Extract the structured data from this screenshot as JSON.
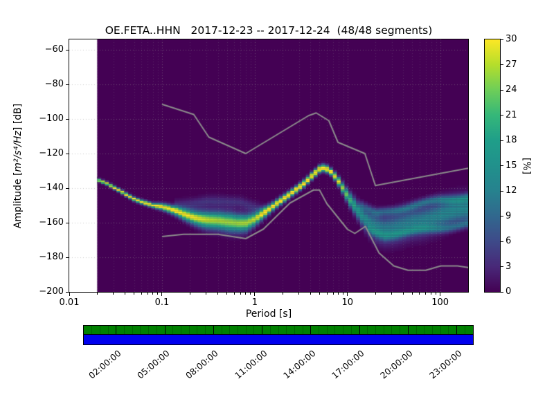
{
  "title": "OE.FETA..HHN   2017-12-23 -- 2017-12-24  (48/48 segments)",
  "y_axis": {
    "label_pre": "Amplitude [",
    "label_math": "m²/s⁴/Hz",
    "label_post": "] [dB]",
    "ticks": [
      {
        "v": -60,
        "label": "−60"
      },
      {
        "v": -80,
        "label": "−80"
      },
      {
        "v": -100,
        "label": "−100"
      },
      {
        "v": -120,
        "label": "−120"
      },
      {
        "v": -140,
        "label": "−140"
      },
      {
        "v": -160,
        "label": "−160"
      },
      {
        "v": -180,
        "label": "−180"
      },
      {
        "v": -200,
        "label": "−200"
      }
    ]
  },
  "x_axis": {
    "label": "Period [s]",
    "ticks": [
      {
        "v": 0.01,
        "label": "0.01"
      },
      {
        "v": 0.1,
        "label": "0.1"
      },
      {
        "v": 1,
        "label": "1"
      },
      {
        "v": 10,
        "label": "10"
      },
      {
        "v": 100,
        "label": "100"
      }
    ]
  },
  "colorbar": {
    "label": "[%]",
    "min": 0,
    "max": 30,
    "ticks": [
      {
        "v": 0,
        "label": "0"
      },
      {
        "v": 3,
        "label": "3"
      },
      {
        "v": 6,
        "label": "6"
      },
      {
        "v": 9,
        "label": "9"
      },
      {
        "v": 12,
        "label": "12"
      },
      {
        "v": 15,
        "label": "15"
      },
      {
        "v": 18,
        "label": "18"
      },
      {
        "v": 21,
        "label": "21"
      },
      {
        "v": 24,
        "label": "24"
      },
      {
        "v": 27,
        "label": "27"
      },
      {
        "v": 30,
        "label": "30"
      }
    ]
  },
  "timebar": {
    "green_color": "#008000",
    "blue_color": "#0000ee",
    "start_hour": 0,
    "end_hour": 24,
    "segments": 48,
    "labels": [
      {
        "hour": 2,
        "text": "02:00:00"
      },
      {
        "hour": 5,
        "text": "05:00:00"
      },
      {
        "hour": 8,
        "text": "08:00:00"
      },
      {
        "hour": 11,
        "text": "11:00:00"
      },
      {
        "hour": 14,
        "text": "14:00:00"
      },
      {
        "hour": 17,
        "text": "17:00:00"
      },
      {
        "hour": 20,
        "text": "20:00:00"
      },
      {
        "hour": 23,
        "text": "23:00:00"
      }
    ]
  },
  "chart_data": {
    "type": "heatmap",
    "description": "PPSD probabilistic power spectral density histogram; probability [%] of PSD amplitude per period bin",
    "x_scale": "log",
    "x_range": [
      0.01,
      200
    ],
    "y_range": [
      -200,
      -54
    ],
    "data_start_period": 0.02,
    "percent_range": [
      0,
      30
    ],
    "background_percent_color": "#440154",
    "colormap": {
      "name": "viridis",
      "stops": [
        [
          0.0,
          "#440154"
        ],
        [
          0.1,
          "#482878"
        ],
        [
          0.2,
          "#3e4a89"
        ],
        [
          0.3,
          "#31688e"
        ],
        [
          0.4,
          "#26828e"
        ],
        [
          0.5,
          "#21918c"
        ],
        [
          0.6,
          "#1f9e89"
        ],
        [
          0.7,
          "#35b779"
        ],
        [
          0.8,
          "#6ece58"
        ],
        [
          0.9,
          "#b5de2b"
        ],
        [
          1.0,
          "#fde725"
        ]
      ]
    },
    "components": [
      {
        "name": "mode-line",
        "range": [
          0.02,
          200
        ],
        "center": [
          [
            0.02,
            -135
          ],
          [
            0.025,
            -137.5
          ],
          [
            0.03,
            -140
          ],
          [
            0.04,
            -143.5
          ],
          [
            0.05,
            -146
          ],
          [
            0.065,
            -148
          ],
          [
            0.08,
            -149.8
          ],
          [
            0.1,
            -151
          ],
          [
            0.13,
            -153
          ],
          [
            0.17,
            -155
          ],
          [
            0.22,
            -156.5
          ],
          [
            0.3,
            -158
          ],
          [
            0.4,
            -159
          ],
          [
            0.5,
            -160
          ],
          [
            0.65,
            -160.5
          ],
          [
            0.8,
            -160
          ],
          [
            1.0,
            -157.5
          ],
          [
            1.3,
            -153.5
          ],
          [
            1.7,
            -149.5
          ],
          [
            2.2,
            -145.5
          ],
          [
            2.8,
            -141
          ],
          [
            3.5,
            -136.5
          ],
          [
            4.2,
            -132
          ],
          [
            5.0,
            -128.5
          ],
          [
            5.6,
            -128
          ],
          [
            6.3,
            -129.5
          ],
          [
            7.0,
            -132
          ],
          [
            8.0,
            -136.5
          ],
          [
            9.0,
            -141
          ],
          [
            10,
            -145
          ],
          [
            11.5,
            -149.5
          ],
          [
            13,
            -153
          ],
          [
            15,
            -157
          ],
          [
            17,
            -159.5
          ],
          [
            20,
            -162
          ],
          [
            25,
            -164
          ],
          [
            32,
            -163.5
          ],
          [
            40,
            -162
          ],
          [
            50,
            -160
          ],
          [
            65,
            -158.5
          ],
          [
            80,
            -157
          ],
          [
            100,
            -155.5
          ],
          [
            130,
            -154
          ],
          [
            160,
            -153
          ],
          [
            200,
            -152
          ]
        ],
        "sigma": [
          [
            0.02,
            0.6
          ],
          [
            0.08,
            0.9
          ],
          [
            0.15,
            1.8
          ],
          [
            0.3,
            3.2
          ],
          [
            0.55,
            3.6
          ],
          [
            0.8,
            3.2
          ],
          [
            1.1,
            2.2
          ],
          [
            1.6,
            1.5
          ],
          [
            2.5,
            1.3
          ],
          [
            7,
            1.3
          ],
          [
            8.5,
            1.8
          ],
          [
            10,
            2.4
          ],
          [
            13,
            3.2
          ],
          [
            16,
            4.0
          ],
          [
            20,
            5.0
          ],
          [
            35,
            5.5
          ],
          [
            100,
            5.5
          ],
          [
            200,
            5.0
          ]
        ],
        "peak": [
          [
            0.02,
            32
          ],
          [
            0.1,
            32
          ],
          [
            0.2,
            30
          ],
          [
            0.35,
            27
          ],
          [
            0.6,
            26
          ],
          [
            0.9,
            27
          ],
          [
            1.2,
            30
          ],
          [
            2,
            34
          ],
          [
            3,
            36
          ],
          [
            6,
            36
          ],
          [
            8,
            30
          ],
          [
            9,
            26
          ],
          [
            10.5,
            22
          ],
          [
            12,
            19
          ],
          [
            14,
            16
          ],
          [
            17,
            14
          ],
          [
            22,
            12.5
          ],
          [
            30,
            12
          ],
          [
            60,
            12.5
          ],
          [
            120,
            13.5
          ],
          [
            200,
            14
          ]
        ],
        "jitter": 0.5
      },
      {
        "name": "upper-haze",
        "range": [
          0.13,
          1.4
        ],
        "center": [
          [
            0.13,
            -150
          ],
          [
            0.3,
            -148
          ],
          [
            0.7,
            -148
          ],
          [
            1.0,
            -151
          ],
          [
            1.4,
            -154
          ]
        ],
        "sigma": [
          [
            0.13,
            2.2
          ]
        ],
        "peak": [
          [
            0.13,
            3.5
          ],
          [
            0.3,
            4.5
          ],
          [
            1.0,
            4
          ],
          [
            1.4,
            3
          ]
        ],
        "jitter": 0.3
      },
      {
        "name": "fan-upper",
        "range": [
          14,
          200
        ],
        "center": [
          [
            14,
            -150
          ],
          [
            20,
            -155
          ],
          [
            30,
            -153
          ],
          [
            50,
            -150
          ],
          [
            100,
            -147
          ],
          [
            200,
            -145
          ]
        ],
        "sigma": [
          [
            14,
            1.6
          ]
        ],
        "peak": [
          [
            14,
            5
          ],
          [
            20,
            8
          ],
          [
            50,
            9
          ],
          [
            200,
            10
          ]
        ],
        "jitter": 0.8
      },
      {
        "name": "fan-lower",
        "range": [
          16,
          200
        ],
        "center": [
          [
            16,
            -164
          ],
          [
            25,
            -167
          ],
          [
            50,
            -165
          ],
          [
            100,
            -163
          ],
          [
            200,
            -161
          ]
        ],
        "sigma": [
          [
            16,
            1.6
          ]
        ],
        "peak": [
          [
            16,
            6
          ],
          [
            25,
            8
          ],
          [
            200,
            8
          ]
        ],
        "jitter": 0.8
      }
    ],
    "noise_models": {
      "color": "#8c8c8c",
      "nhnm": [
        [
          0.1,
          -91.5
        ],
        [
          0.22,
          -97.4
        ],
        [
          0.32,
          -110.5
        ],
        [
          0.8,
          -120.0
        ],
        [
          3.8,
          -98.1
        ],
        [
          4.6,
          -96.5
        ],
        [
          6.3,
          -101.0
        ],
        [
          7.9,
          -113.5
        ],
        [
          15.4,
          -120.0
        ],
        [
          20.0,
          -138.5
        ],
        [
          354.8,
          -126.0
        ]
      ],
      "nlnm": [
        [
          0.1,
          -168.0
        ],
        [
          0.17,
          -166.7
        ],
        [
          0.4,
          -166.7
        ],
        [
          0.8,
          -169.2
        ],
        [
          1.24,
          -163.7
        ],
        [
          2.4,
          -148.6
        ],
        [
          4.3,
          -141.1
        ],
        [
          5.0,
          -141.1
        ],
        [
          6.0,
          -149.0
        ],
        [
          10.0,
          -163.8
        ],
        [
          12.0,
          -166.2
        ],
        [
          15.6,
          -162.1
        ],
        [
          21.9,
          -177.5
        ],
        [
          31.6,
          -185.0
        ],
        [
          45.0,
          -187.5
        ],
        [
          70.0,
          -187.5
        ],
        [
          101.0,
          -185.0
        ],
        [
          154.0,
          -185.0
        ],
        [
          328.0,
          -187.5
        ]
      ]
    }
  }
}
